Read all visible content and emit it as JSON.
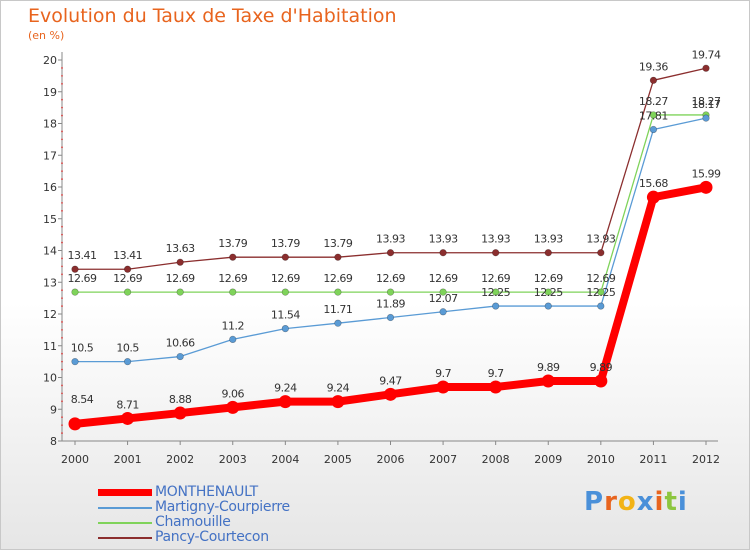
{
  "title": "Evolution du Taux de Taxe d'Habitation",
  "subtitle": "(en %)",
  "logo": {
    "text": "Proxiti",
    "letter_colors": [
      "#4a90d9",
      "#e8641e",
      "#f2b316",
      "#4a90d9",
      "#e8641e",
      "#8dc63f",
      "#4a90d9"
    ]
  },
  "chart_data": {
    "type": "line",
    "title": "Evolution du Taux de Taxe d'Habitation",
    "ylabel": "(en %)",
    "xlabel": "",
    "x": [
      "2000",
      "2001",
      "2002",
      "2003",
      "2004",
      "2005",
      "2006",
      "2007",
      "2008",
      "2009",
      "2010",
      "2011",
      "2012"
    ],
    "ylim": [
      8,
      20
    ],
    "yticks": [
      "8",
      "9",
      "10",
      "11",
      "12",
      "13",
      "14",
      "15",
      "16",
      "17",
      "18",
      "19",
      "20"
    ],
    "grid": false,
    "legend_position": "bottom-left",
    "series": [
      {
        "name": "MONTHENAULT",
        "color": "#ff0000",
        "values": [
          8.54,
          8.71,
          8.88,
          9.06,
          9.24,
          9.24,
          9.47,
          9.7,
          9.7,
          9.89,
          9.89,
          15.68,
          15.99
        ],
        "labels": [
          "8.54",
          "8.71",
          "8.88",
          "9.06",
          "9.24",
          "9.24",
          "9.47",
          "9.7",
          "9.7",
          "9.89",
          "9.89",
          "15.68",
          "15.99"
        ]
      },
      {
        "name": "Martigny-Courpierre",
        "color": "#5a9bd5",
        "values": [
          10.5,
          10.5,
          10.66,
          11.2,
          11.54,
          11.71,
          11.89,
          12.07,
          12.25,
          12.25,
          12.25,
          17.81,
          18.17
        ],
        "labels": [
          "10.5",
          "10.5",
          "10.66",
          "11.2",
          "11.54",
          "11.71",
          "11.89",
          "12.07",
          "12.25",
          "12.25",
          "12.25",
          "17.81",
          "18.17"
        ]
      },
      {
        "name": "Chamouille",
        "color": "#7fd35a",
        "values": [
          12.69,
          12.69,
          12.69,
          12.69,
          12.69,
          12.69,
          12.69,
          12.69,
          12.69,
          12.69,
          12.69,
          18.27,
          18.27
        ],
        "labels": [
          "12.69",
          "12.69",
          "12.69",
          "12.69",
          "12.69",
          "12.69",
          "12.69",
          "12.69",
          "12.69",
          "12.69",
          "12.69",
          "18.27",
          "18.27"
        ]
      },
      {
        "name": "Pancy-Courtecon",
        "color": "#8b2e2e",
        "values": [
          13.41,
          13.41,
          13.63,
          13.79,
          13.79,
          13.79,
          13.93,
          13.93,
          13.93,
          13.93,
          13.93,
          19.36,
          19.74
        ],
        "labels": [
          "13.41",
          "13.41",
          "13.63",
          "13.79",
          "13.79",
          "13.79",
          "13.93",
          "13.93",
          "13.93",
          "13.93",
          "13.93",
          "19.36",
          "19.74"
        ]
      }
    ]
  }
}
